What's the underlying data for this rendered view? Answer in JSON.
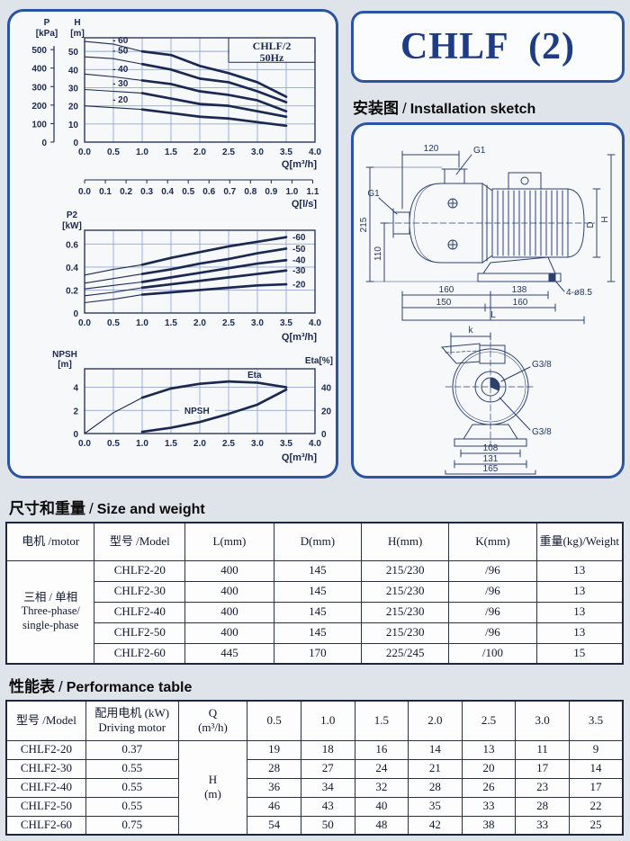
{
  "page": {
    "bg": "#dfe3ea",
    "accent": "#2b55a4",
    "ink": "#1b2950",
    "grid": "#93a7cc"
  },
  "title": {
    "text": "CHLF  (2)"
  },
  "sections": {
    "installation": {
      "zh": "安装图",
      "slash": "/",
      "en": "Installation sketch"
    },
    "size": {
      "zh": "尺寸和重量",
      "slash": "/",
      "en": "Size and weight"
    },
    "performance": {
      "zh": "性能表",
      "slash": "/",
      "en": "Performance table"
    }
  },
  "chart_data": [
    {
      "type": "line",
      "name": "head-flow-curves",
      "title": "CHLF/2",
      "subtitle": "50Hz",
      "xlabel": "Q[m³/h]",
      "x2label": "Q[l/s]",
      "xlim": [
        0,
        4
      ],
      "ylim": [
        0,
        57.5
      ],
      "x": [
        0,
        0.5,
        1,
        1.5,
        2,
        2.5,
        3,
        3.5
      ],
      "xticks": [
        "0.0",
        "0.5",
        "1.0",
        "1.5",
        "2.0",
        "2.5",
        "3.0",
        "3.5",
        "4.0"
      ],
      "x2ticks": [
        "0.0",
        "0.1",
        "0.2",
        "0.3",
        "0.4",
        "0.5",
        "0.6",
        "0.7",
        "0.8",
        "0.9",
        "1.0",
        "1.1"
      ],
      "h_axis": {
        "label": "H",
        "unit": "[m]",
        "ticks": [
          "0",
          "10",
          "20",
          "30",
          "40",
          "50"
        ]
      },
      "p_axis": {
        "label": "P",
        "unit": "[kPa]",
        "ticks": [
          "0",
          "100",
          "200",
          "300",
          "400",
          "500"
        ]
      },
      "series": [
        {
          "name": "-60",
          "values": [
            55.5,
            54,
            50,
            48,
            42,
            38,
            33,
            25
          ]
        },
        {
          "name": "-50",
          "values": [
            47,
            46,
            43,
            40,
            35,
            33,
            28,
            22
          ]
        },
        {
          "name": "-40",
          "values": [
            37.5,
            36,
            34,
            32,
            28,
            26,
            23,
            17
          ]
        },
        {
          "name": "-30",
          "values": [
            29,
            28,
            27,
            24,
            21,
            20,
            17,
            14
          ]
        },
        {
          "name": "-20",
          "values": [
            20,
            19,
            18,
            16,
            14,
            13,
            11,
            9
          ]
        }
      ]
    },
    {
      "type": "line",
      "name": "power-flow-curves",
      "ylabel": "P2",
      "yunit": "[kW]",
      "xlabel": "Q[m³/h]",
      "xlim": [
        0,
        4
      ],
      "ylim": [
        0,
        0.72
      ],
      "x": [
        0,
        0.5,
        1,
        1.5,
        2,
        2.5,
        3,
        3.5
      ],
      "xticks": [
        "0.0",
        "0.5",
        "1.0",
        "1.5",
        "2.0",
        "2.5",
        "3.0",
        "3.5",
        "4.0"
      ],
      "yticks": [
        "0",
        "0.2",
        "0.4",
        "0.6"
      ],
      "series": [
        {
          "name": "-60",
          "values": [
            0.33,
            0.38,
            0.42,
            0.48,
            0.53,
            0.58,
            0.62,
            0.66
          ]
        },
        {
          "name": "-50",
          "values": [
            0.26,
            0.3,
            0.34,
            0.38,
            0.43,
            0.47,
            0.52,
            0.56
          ]
        },
        {
          "name": "-40",
          "values": [
            0.21,
            0.24,
            0.27,
            0.31,
            0.35,
            0.39,
            0.43,
            0.46
          ]
        },
        {
          "name": "-30",
          "values": [
            0.15,
            0.18,
            0.22,
            0.25,
            0.28,
            0.31,
            0.34,
            0.37
          ]
        },
        {
          "name": "-20",
          "values": [
            0.09,
            0.12,
            0.16,
            0.18,
            0.2,
            0.22,
            0.24,
            0.25
          ]
        }
      ]
    },
    {
      "type": "line",
      "name": "npsh-eta-curves",
      "xlabel": "Q[m³/h]",
      "xlim": [
        0,
        4
      ],
      "ylim": [
        0,
        5.6
      ],
      "xticks": [
        "0.0",
        "0.5",
        "1.0",
        "1.5",
        "2.0",
        "2.5",
        "3.0",
        "3.5",
        "4.0"
      ],
      "left_axis": {
        "label": "NPSH",
        "unit": "[m]",
        "ticks": [
          "0",
          "2",
          "4"
        ]
      },
      "right_axis": {
        "label": "Eta[%]",
        "ticks": [
          "0",
          "20",
          "40"
        ]
      },
      "eta": {
        "name": "Eta",
        "x": [
          0,
          0.5,
          1,
          1.5,
          2,
          2.5,
          3,
          3.5
        ],
        "values": [
          0,
          18,
          31,
          39,
          43,
          45,
          44,
          40
        ]
      },
      "npsh": {
        "name": "NPSH",
        "x": [
          1,
          1.5,
          2,
          2.5,
          3,
          3.5
        ],
        "values": [
          0.15,
          0.5,
          1.0,
          1.7,
          2.5,
          3.8
        ]
      }
    }
  ],
  "sketch": {
    "side": {
      "top_width": "120",
      "top_port": "G1",
      "suction_port": "G1",
      "height_total": "215",
      "suction_height": "110",
      "foot_front": "160",
      "foot_span": "138",
      "base_front": "150",
      "base_span": "160",
      "length": "L",
      "holes": "4-ø8.5",
      "motor_dia": "D",
      "height": "H"
    },
    "front": {
      "k": "k",
      "plug_top": "G3/8",
      "plug_bottom": "G3/8",
      "foot_inner": "108",
      "foot_outer": "131",
      "base_width": "165"
    }
  },
  "size_table": {
    "col_motor": "电机 /motor",
    "col_model": "型号 /Model",
    "cols": [
      "L(mm)",
      "D(mm)",
      "H(mm)",
      "K(mm)",
      "重量(kg)/Weight"
    ],
    "motor_type": [
      "三相 / 单相",
      "Three-phase/",
      "single-phase"
    ],
    "rows": [
      {
        "model": "CHLF2-20",
        "l": "400",
        "d": "145",
        "h": "215/230",
        "k": "/96",
        "w": "13"
      },
      {
        "model": "CHLF2-30",
        "l": "400",
        "d": "145",
        "h": "215/230",
        "k": "/96",
        "w": "13"
      },
      {
        "model": "CHLF2-40",
        "l": "400",
        "d": "145",
        "h": "215/230",
        "k": "/96",
        "w": "13"
      },
      {
        "model": "CHLF2-50",
        "l": "400",
        "d": "145",
        "h": "215/230",
        "k": "/96",
        "w": "13"
      },
      {
        "model": "CHLF2-60",
        "l": "445",
        "d": "170",
        "h": "225/245",
        "k": "/100",
        "w": "15"
      }
    ]
  },
  "performance_table": {
    "col_model": "型号 /Model",
    "col_motor_zh": "配用电机 (kW)",
    "col_motor_en": "Driving motor",
    "col_q": "Q",
    "col_q_unit": "(m³/h)",
    "flow_cols": [
      "0.5",
      "1.0",
      "1.5",
      "2.0",
      "2.5",
      "3.0",
      "3.5"
    ],
    "h_label": "H",
    "h_unit": "(m)",
    "rows": [
      {
        "model": "CHLF2-20",
        "motor": "0.37",
        "h": [
          "19",
          "18",
          "16",
          "14",
          "13",
          "11",
          "9"
        ]
      },
      {
        "model": "CHLF2-30",
        "motor": "0.55",
        "h": [
          "28",
          "27",
          "24",
          "21",
          "20",
          "17",
          "14"
        ]
      },
      {
        "model": "CHLF2-40",
        "motor": "0.55",
        "h": [
          "36",
          "34",
          "32",
          "28",
          "26",
          "23",
          "17"
        ]
      },
      {
        "model": "CHLF2-50",
        "motor": "0.55",
        "h": [
          "46",
          "43",
          "40",
          "35",
          "33",
          "28",
          "22"
        ]
      },
      {
        "model": "CHLF2-60",
        "motor": "0.75",
        "h": [
          "54",
          "50",
          "48",
          "42",
          "38",
          "33",
          "25"
        ]
      }
    ]
  }
}
